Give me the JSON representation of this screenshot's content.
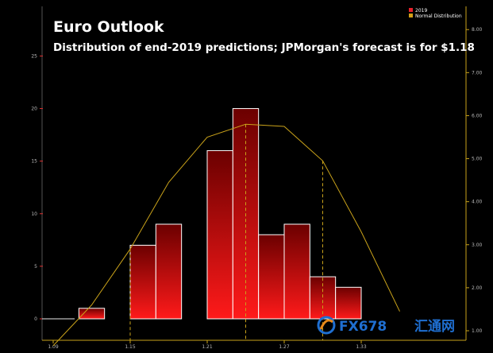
{
  "chart_data": {
    "type": "bar",
    "title": "Euro Outlook",
    "subtitle": "Distribution of end-2019 predictions; JPMorgan's forecast is for $1.18",
    "bin_edges": [
      1.09,
      1.11,
      1.13,
      1.15,
      1.17,
      1.19,
      1.21,
      1.23,
      1.25,
      1.27,
      1.29,
      1.31,
      1.33,
      1.35
    ],
    "x_ticks": [
      "1.09",
      "1.15",
      "1.21",
      "1.27",
      "1.33"
    ],
    "x_tick_values": [
      1.09,
      1.15,
      1.21,
      1.27,
      1.33
    ],
    "series": [
      {
        "name": "2019",
        "type": "bar",
        "x_starts": [
          1.11,
          1.15,
          1.17,
          1.21,
          1.23,
          1.25,
          1.27,
          1.29,
          1.31
        ],
        "x_ends": [
          1.13,
          1.17,
          1.19,
          1.23,
          1.25,
          1.27,
          1.29,
          1.31,
          1.33
        ],
        "values": [
          1,
          7,
          9,
          16,
          20,
          8,
          9,
          4,
          3
        ]
      },
      {
        "name": "Normal Distribution",
        "type": "line",
        "x": [
          1.09,
          1.12,
          1.15,
          1.18,
          1.21,
          1.24,
          1.27,
          1.3,
          1.33,
          1.36
        ],
        "values": [
          0.65,
          1.6,
          2.9,
          4.45,
          5.5,
          5.8,
          5.75,
          4.95,
          3.3,
          1.45
        ]
      }
    ],
    "dashed_markers_x": [
      1.15,
      1.24,
      1.3
    ],
    "y_left": {
      "ticks": [
        "0",
        "5",
        "10",
        "15",
        "20",
        "25"
      ],
      "range": [
        0,
        27
      ]
    },
    "y_right": {
      "ticks": [
        "1.00",
        "2.00",
        "3.00",
        "4.00",
        "5.00",
        "6.00",
        "7.00",
        "8.00"
      ],
      "range": [
        1.0,
        8.3
      ]
    },
    "legend": {
      "position": "top-right",
      "items": [
        {
          "label": "2019",
          "color": "#e8202a"
        },
        {
          "label": "Normal Distribution",
          "color": "#d4a017"
        }
      ]
    },
    "grid": false,
    "colors": {
      "background": "#000000",
      "bar_top": "#6b0000",
      "bar_bottom": "#ff1a1a",
      "bar_stroke": "#ffffff",
      "normal_line": "#c9a21a",
      "axis_left_tick": "#e03030",
      "axis_right": "#c9a21a"
    }
  },
  "watermark": {
    "brand": "FX678",
    "brand_cn": "汇通网"
  }
}
